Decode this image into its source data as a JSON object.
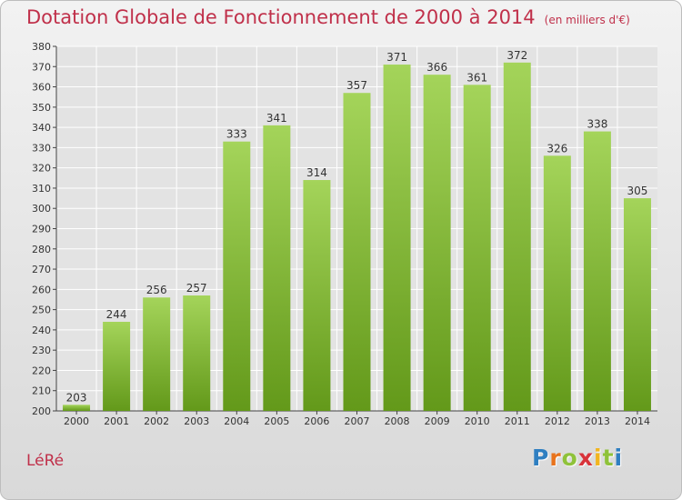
{
  "header": {
    "title": "Dotation Globale de Fonctionnement de 2000 à 2014",
    "subtitle": "(en milliers d'€)"
  },
  "footer": {
    "municipality": "LéRé",
    "brand_letters": [
      "P",
      "r",
      "o",
      "x",
      "i",
      "t",
      "i"
    ],
    "brand_colors": [
      "#2f7fc1",
      "#e8731c",
      "#8fc23a",
      "#d8333a",
      "#f2b51f",
      "#8fc23a",
      "#2f7fc1"
    ]
  },
  "colors": {
    "bar_top": "#a4d45a",
    "bar_bottom": "#63991a",
    "title": "#c0304a",
    "grid": "#ffffff"
  },
  "chart_data": {
    "type": "bar",
    "categories": [
      "2000",
      "2001",
      "2002",
      "2003",
      "2004",
      "2005",
      "2006",
      "2007",
      "2008",
      "2009",
      "2010",
      "2011",
      "2012",
      "2013",
      "2014"
    ],
    "values": [
      203,
      244,
      256,
      257,
      333,
      341,
      314,
      357,
      371,
      366,
      361,
      372,
      326,
      338,
      305
    ],
    "title": "Dotation Globale de Fonctionnement de 2000 à 2014",
    "xlabel": "",
    "ylabel": "",
    "ylim": [
      200,
      380
    ],
    "yticks": [
      200,
      210,
      220,
      230,
      240,
      250,
      260,
      270,
      280,
      290,
      300,
      310,
      320,
      330,
      340,
      350,
      360,
      370,
      380
    ],
    "grid": true,
    "data_labels": true,
    "legend": "none"
  }
}
